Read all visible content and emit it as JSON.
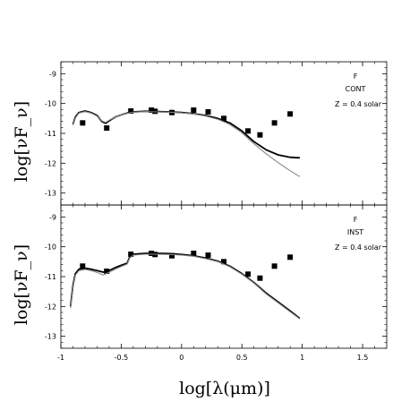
{
  "chart_data": [
    {
      "type": "scatter",
      "panel": "top",
      "ylabel": "log[νF_ν]",
      "xlim": [
        -1,
        1.7
      ],
      "ylim": [
        -13.4,
        -8.6
      ],
      "y_ticks": [
        -9,
        -10,
        -11,
        -12,
        -13
      ],
      "annotations": [
        "F",
        "CONT",
        "Z = 0.4 solar"
      ],
      "series": [
        {
          "style": "points",
          "x": [
            -0.82,
            -0.62,
            -0.42,
            -0.25,
            -0.22,
            -0.08,
            0.1,
            0.22,
            0.35,
            0.55,
            0.65,
            0.77,
            0.9
          ],
          "y": [
            -10.65,
            -10.82,
            -10.25,
            -10.22,
            -10.26,
            -10.3,
            -10.22,
            -10.28,
            -10.5,
            -10.92,
            -11.05,
            -10.65,
            -10.35
          ],
          "color": "#000000"
        },
        {
          "style": "line",
          "x": [
            -0.9,
            -0.88,
            -0.85,
            -0.8,
            -0.75,
            -0.7,
            -0.66,
            -0.63,
            -0.6,
            -0.55,
            -0.5,
            -0.45,
            -0.4,
            -0.3,
            -0.2,
            -0.1,
            0.0,
            0.1,
            0.2,
            0.3,
            0.4,
            0.5,
            0.6,
            0.7,
            0.8,
            0.9,
            0.98
          ],
          "y": [
            -10.7,
            -10.45,
            -10.3,
            -10.25,
            -10.3,
            -10.4,
            -10.6,
            -10.66,
            -10.58,
            -10.45,
            -10.38,
            -10.32,
            -10.28,
            -10.26,
            -10.27,
            -10.28,
            -10.3,
            -10.34,
            -10.4,
            -10.5,
            -10.65,
            -10.92,
            -11.28,
            -11.55,
            -11.72,
            -11.8,
            -11.82
          ],
          "color": "#000000"
        },
        {
          "style": "line",
          "x": [
            -0.9,
            -0.88,
            -0.85,
            -0.8,
            -0.75,
            -0.7,
            -0.66,
            -0.63,
            -0.6,
            -0.55,
            -0.5,
            -0.45,
            -0.4,
            -0.3,
            -0.2,
            -0.1,
            0.0,
            0.1,
            0.2,
            0.3,
            0.4,
            0.5,
            0.6,
            0.7,
            0.8,
            0.9,
            0.98
          ],
          "y": [
            -10.72,
            -10.48,
            -10.32,
            -10.27,
            -10.32,
            -10.42,
            -10.58,
            -10.63,
            -10.56,
            -10.45,
            -10.38,
            -10.33,
            -10.29,
            -10.27,
            -10.28,
            -10.29,
            -10.31,
            -10.35,
            -10.42,
            -10.53,
            -10.7,
            -10.98,
            -11.35,
            -11.68,
            -11.98,
            -12.25,
            -12.45
          ],
          "color": "#888888"
        }
      ]
    },
    {
      "type": "scatter",
      "panel": "bottom",
      "xlabel": "log[λ(μm)]",
      "ylabel": "log[νF_ν]",
      "xlim": [
        -1,
        1.7
      ],
      "ylim": [
        -13.4,
        -8.6
      ],
      "x_ticks": [
        -1,
        -0.5,
        0,
        0.5,
        1,
        1.5
      ],
      "x_tick_labels": [
        "-1",
        "-0.5",
        "0",
        "0.5",
        "1",
        "1.5"
      ],
      "y_ticks": [
        -9,
        -10,
        -11,
        -12,
        -13
      ],
      "annotations": [
        "F",
        "INST",
        "Z = 0.4 solar"
      ],
      "series": [
        {
          "style": "points",
          "x": [
            -0.82,
            -0.62,
            -0.42,
            -0.25,
            -0.22,
            -0.08,
            0.1,
            0.22,
            0.35,
            0.55,
            0.65,
            0.77,
            0.9
          ],
          "y": [
            -10.65,
            -10.82,
            -10.25,
            -10.22,
            -10.26,
            -10.3,
            -10.22,
            -10.28,
            -10.5,
            -10.92,
            -11.05,
            -10.65,
            -10.35
          ],
          "color": "#000000"
        },
        {
          "style": "line",
          "x": [
            -0.92,
            -0.9,
            -0.88,
            -0.85,
            -0.8,
            -0.75,
            -0.7,
            -0.65,
            -0.6,
            -0.55,
            -0.5,
            -0.45,
            -0.43,
            -0.4,
            -0.3,
            -0.2,
            -0.1,
            0.0,
            0.1,
            0.2,
            0.3,
            0.4,
            0.5,
            0.6,
            0.7,
            0.8,
            0.9,
            0.98
          ],
          "y": [
            -12.0,
            -11.3,
            -10.9,
            -10.75,
            -10.72,
            -10.75,
            -10.8,
            -10.85,
            -10.8,
            -10.7,
            -10.62,
            -10.55,
            -10.35,
            -10.25,
            -10.22,
            -10.22,
            -10.23,
            -10.26,
            -10.3,
            -10.38,
            -10.48,
            -10.65,
            -10.9,
            -11.2,
            -11.55,
            -11.85,
            -12.15,
            -12.4
          ],
          "color": "#000000"
        },
        {
          "style": "line",
          "x": [
            -0.92,
            -0.9,
            -0.88,
            -0.85,
            -0.8,
            -0.75,
            -0.7,
            -0.65,
            -0.6,
            -0.55,
            -0.5,
            -0.45,
            -0.43,
            -0.4,
            -0.3,
            -0.2,
            -0.1,
            0.0,
            0.1,
            0.2,
            0.3,
            0.4,
            0.5,
            0.6,
            0.7,
            0.8,
            0.9,
            0.98
          ],
          "y": [
            -12.05,
            -11.35,
            -10.95,
            -10.8,
            -10.76,
            -10.8,
            -10.86,
            -10.95,
            -10.86,
            -10.75,
            -10.66,
            -10.58,
            -10.38,
            -10.28,
            -10.25,
            -10.25,
            -10.26,
            -10.28,
            -10.32,
            -10.4,
            -10.5,
            -10.67,
            -10.92,
            -11.22,
            -11.58,
            -11.88,
            -12.18,
            -12.42
          ],
          "color": "#888888"
        }
      ]
    }
  ]
}
